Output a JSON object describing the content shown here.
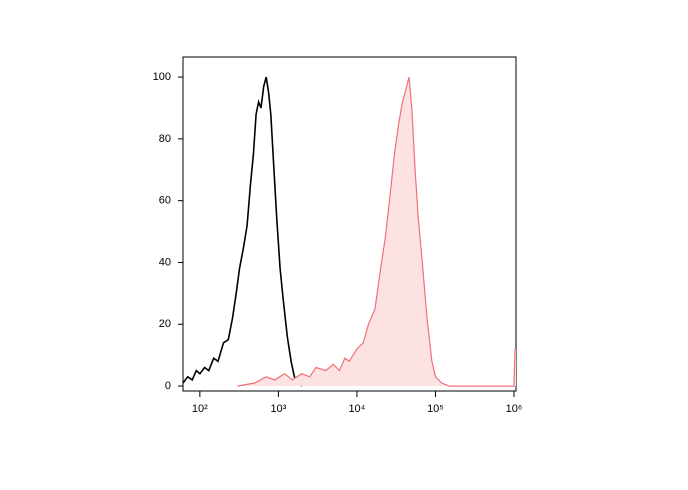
{
  "chart_data": {
    "type": "histogram-line",
    "xscale": "log",
    "xlim": [
      61,
      1060000
    ],
    "ylim": [
      -1.6,
      106.5
    ],
    "xticks": [
      {
        "value": 100,
        "label": "10²"
      },
      {
        "value": 1000,
        "label": "10³"
      },
      {
        "value": 10000,
        "label": "10⁴"
      },
      {
        "value": 100000,
        "label": "10⁵"
      },
      {
        "value": 1000000,
        "label": "10⁶"
      }
    ],
    "yticks": [
      0,
      20,
      40,
      60,
      80,
      100
    ],
    "series": [
      {
        "color": "#000000",
        "fill": false,
        "x": [
          61,
          70,
          80,
          90,
          100,
          115,
          130,
          150,
          170,
          200,
          230,
          260,
          290,
          320,
          360,
          400,
          440,
          480,
          520,
          560,
          600,
          650,
          700,
          750,
          800,
          870,
          950,
          1050,
          1150,
          1300,
          1450,
          1600,
          1800,
          2000
        ],
        "values": [
          1,
          3,
          2,
          5,
          4,
          6,
          5,
          9,
          8,
          14,
          15,
          22,
          30,
          38,
          45,
          52,
          65,
          75,
          88,
          92,
          90,
          97,
          100,
          95,
          88,
          72,
          55,
          38,
          28,
          16,
          8,
          3,
          1,
          0
        ]
      },
      {
        "color": "#f0707a",
        "fill": "#fde2e3",
        "x": [
          300,
          500,
          700,
          900,
          1200,
          1500,
          2000,
          2500,
          3000,
          4000,
          5000,
          6000,
          7000,
          8000,
          10000,
          12000,
          14000,
          17000,
          20000,
          23000,
          26000,
          30000,
          34000,
          38000,
          42000,
          46000,
          50000,
          55000,
          60000,
          68000,
          78000,
          90000,
          100000,
          120000,
          150000,
          500000,
          900000,
          1000000,
          1030000,
          1060000
        ],
        "values": [
          0,
          1,
          3,
          2,
          4,
          2,
          4,
          3,
          6,
          5,
          7,
          5,
          9,
          8,
          12,
          14,
          20,
          25,
          38,
          48,
          60,
          75,
          85,
          92,
          96,
          100,
          90,
          70,
          55,
          40,
          22,
          8,
          3,
          1,
          0,
          0,
          0,
          0,
          12,
          12
        ]
      }
    ]
  }
}
